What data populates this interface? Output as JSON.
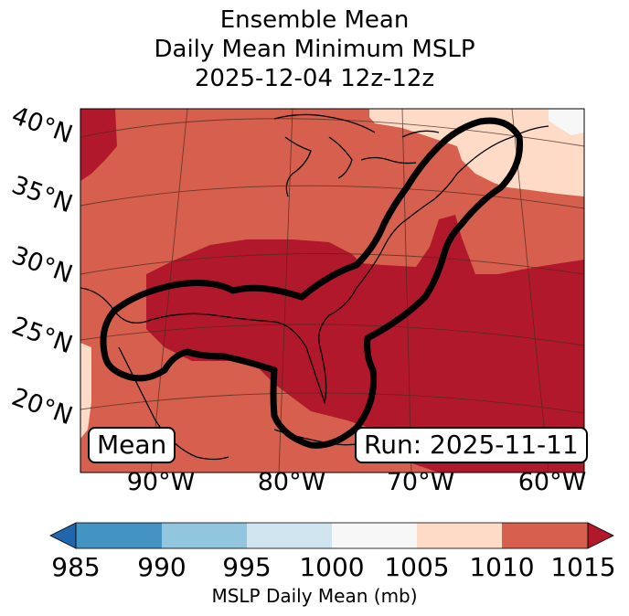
{
  "title": {
    "line1": "Ensemble Mean",
    "line2": "Daily Mean Minimum MSLP",
    "line3": "2025-12-04 12z-12z"
  },
  "latitude_labels": [
    "40°N",
    "35°N",
    "30°N",
    "25°N",
    "20°N"
  ],
  "longitude_labels": [
    "90°W",
    "80°W",
    "70°W",
    "60°W"
  ],
  "annotations": {
    "left_box": "Mean",
    "right_box": "Run: 2025-11-11"
  },
  "colorbar": {
    "label": "MSLP Daily Mean (mb)",
    "ticks": [
      "985",
      "990",
      "995",
      "1000",
      "1005",
      "1010",
      "1015"
    ],
    "colors": [
      "#4393c3",
      "#92c5de",
      "#d1e5f0",
      "#f7f7f7",
      "#fddbc7",
      "#d6604d",
      "#b2182b"
    ],
    "under_color": "#2166ac",
    "over_color": "#b2182b"
  }
}
